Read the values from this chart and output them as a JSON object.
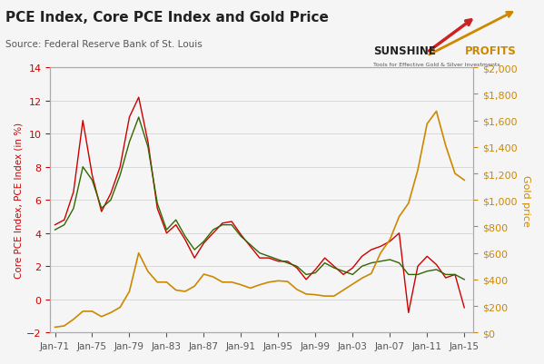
{
  "title": "PCE Index, Core PCE Index and Gold Price",
  "source": "Source: Federal Reserve Bank of St. Louis",
  "ylabel_left": "Core PCE Index, PCE Index (in %)",
  "ylabel_right": "Gold price",
  "left_color": "#cc0000",
  "core_color": "#336600",
  "gold_color": "#cc8800",
  "ylim_left": [
    -2,
    14
  ],
  "ylim_right": [
    0,
    2000
  ],
  "yticks_left": [
    -2,
    0,
    2,
    4,
    6,
    8,
    10,
    12,
    14
  ],
  "yticks_right": [
    0,
    200,
    400,
    600,
    800,
    1000,
    1200,
    1400,
    1600,
    1800,
    2000
  ],
  "background_color": "#f5f5f5",
  "grid_color": "#cccccc",
  "years": [
    1971,
    1972,
    1973,
    1974,
    1975,
    1976,
    1977,
    1978,
    1979,
    1980,
    1981,
    1982,
    1983,
    1984,
    1985,
    1986,
    1987,
    1988,
    1989,
    1990,
    1991,
    1992,
    1993,
    1994,
    1995,
    1996,
    1997,
    1998,
    1999,
    2000,
    2001,
    2002,
    2003,
    2004,
    2005,
    2006,
    2007,
    2008,
    2009,
    2010,
    2011,
    2012,
    2013,
    2014,
    2015
  ],
  "pce": [
    4.5,
    4.8,
    6.5,
    10.8,
    7.5,
    5.3,
    6.4,
    8.0,
    11.0,
    12.2,
    9.5,
    5.5,
    4.0,
    4.5,
    3.6,
    2.5,
    3.4,
    4.0,
    4.6,
    4.7,
    3.9,
    3.2,
    2.5,
    2.5,
    2.3,
    2.3,
    1.9,
    1.2,
    1.8,
    2.5,
    2.0,
    1.5,
    1.9,
    2.6,
    3.0,
    3.2,
    3.5,
    4.0,
    -0.8,
    2.0,
    2.6,
    2.1,
    1.3,
    1.5,
    -0.5
  ],
  "core_pce": [
    4.2,
    4.5,
    5.5,
    8.0,
    7.2,
    5.5,
    6.0,
    7.5,
    9.5,
    11.0,
    9.2,
    5.8,
    4.2,
    4.8,
    3.8,
    3.0,
    3.5,
    4.2,
    4.5,
    4.5,
    3.8,
    3.3,
    2.8,
    2.6,
    2.4,
    2.2,
    2.0,
    1.5,
    1.6,
    2.2,
    1.9,
    1.7,
    1.5,
    2.0,
    2.2,
    2.3,
    2.4,
    2.2,
    1.5,
    1.5,
    1.7,
    1.8,
    1.5,
    1.5,
    1.2
  ],
  "gold": [
    40,
    50,
    100,
    160,
    160,
    120,
    150,
    190,
    310,
    600,
    460,
    380,
    380,
    320,
    310,
    350,
    440,
    420,
    380,
    380,
    360,
    335,
    360,
    380,
    390,
    385,
    325,
    290,
    285,
    275,
    275,
    320,
    365,
    410,
    445,
    600,
    700,
    875,
    975,
    1225,
    1575,
    1670,
    1410,
    1200,
    1150
  ]
}
